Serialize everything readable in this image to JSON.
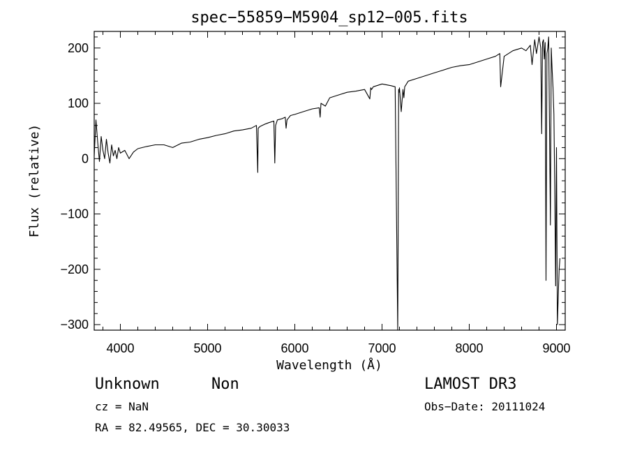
{
  "chart_data": {
    "type": "line",
    "title": "spec−55859−M5904_sp12−005.fits",
    "xlabel": "Wavelength (Å)",
    "ylabel": "Flux (relative)",
    "xlim": [
      3700,
      9100
    ],
    "ylim": [
      -310,
      230
    ],
    "xticks": [
      4000,
      5000,
      6000,
      7000,
      8000,
      9000
    ],
    "xtick_labels": [
      "4000",
      "5000",
      "6000",
      "7000",
      "8000",
      "9000"
    ],
    "yticks": [
      200,
      100,
      0,
      -100,
      -200,
      -300
    ],
    "ytick_labels": [
      "200",
      "100",
      "0",
      "−100",
      "−200",
      "−300"
    ],
    "series": [
      {
        "name": "flux",
        "x": [
          3700,
          3720,
          3740,
          3760,
          3780,
          3800,
          3820,
          3840,
          3860,
          3880,
          3900,
          3920,
          3940,
          3960,
          3980,
          4000,
          4050,
          4100,
          4150,
          4200,
          4300,
          4400,
          4500,
          4600,
          4700,
          4800,
          4900,
          5000,
          5100,
          5200,
          5300,
          5400,
          5500,
          5560,
          5575,
          5580,
          5600,
          5650,
          5700,
          5760,
          5770,
          5780,
          5800,
          5850,
          5890,
          5900,
          5910,
          5950,
          6000,
          6100,
          6200,
          6280,
          6290,
          6300,
          6350,
          6400,
          6500,
          6600,
          6700,
          6800,
          6860,
          6870,
          6880,
          6900,
          7000,
          7100,
          7150,
          7180,
          7185,
          7190,
          7195,
          7200,
          7220,
          7240,
          7250,
          7260,
          7300,
          7400,
          7500,
          7600,
          7700,
          7800,
          7900,
          8000,
          8100,
          8200,
          8300,
          8350,
          8360,
          8400,
          8500,
          8600,
          8650,
          8700,
          8720,
          8750,
          8770,
          8800,
          8820,
          8830,
          8840,
          8850,
          8860,
          8870,
          8880,
          8890,
          8900,
          8910,
          8920,
          8930,
          8940,
          8950,
          8960,
          8970,
          8980,
          8990,
          9000,
          9010,
          9020,
          9030,
          9040
        ],
        "y": [
          5,
          70,
          30,
          -5,
          40,
          15,
          0,
          35,
          10,
          -8,
          25,
          5,
          15,
          0,
          20,
          10,
          15,
          0,
          12,
          18,
          22,
          25,
          25,
          20,
          28,
          30,
          35,
          38,
          42,
          45,
          50,
          52,
          55,
          60,
          -25,
          55,
          58,
          62,
          65,
          68,
          -8,
          60,
          70,
          72,
          75,
          55,
          70,
          78,
          80,
          85,
          90,
          92,
          75,
          100,
          95,
          110,
          115,
          120,
          122,
          125,
          108,
          128,
          125,
          130,
          135,
          132,
          130,
          -310,
          -140,
          125,
          120,
          128,
          85,
          125,
          110,
          130,
          140,
          145,
          150,
          155,
          160,
          165,
          168,
          170,
          175,
          180,
          185,
          190,
          130,
          185,
          195,
          200,
          195,
          205,
          170,
          215,
          190,
          220,
          200,
          45,
          210,
          215,
          180,
          210,
          -220,
          190,
          200,
          220,
          60,
          -120,
          200,
          160,
          130,
          80,
          -50,
          -230,
          20,
          -300,
          -250,
          -200,
          -180
        ]
      }
    ]
  },
  "labels": {
    "object_class": "Unknown",
    "subclass": "Non",
    "survey": "LAMOST DR3",
    "cz": "cz = NaN",
    "obs_date": "Obs−Date: 20111024",
    "coords": "RA =  82.49565, DEC =  30.30033"
  }
}
